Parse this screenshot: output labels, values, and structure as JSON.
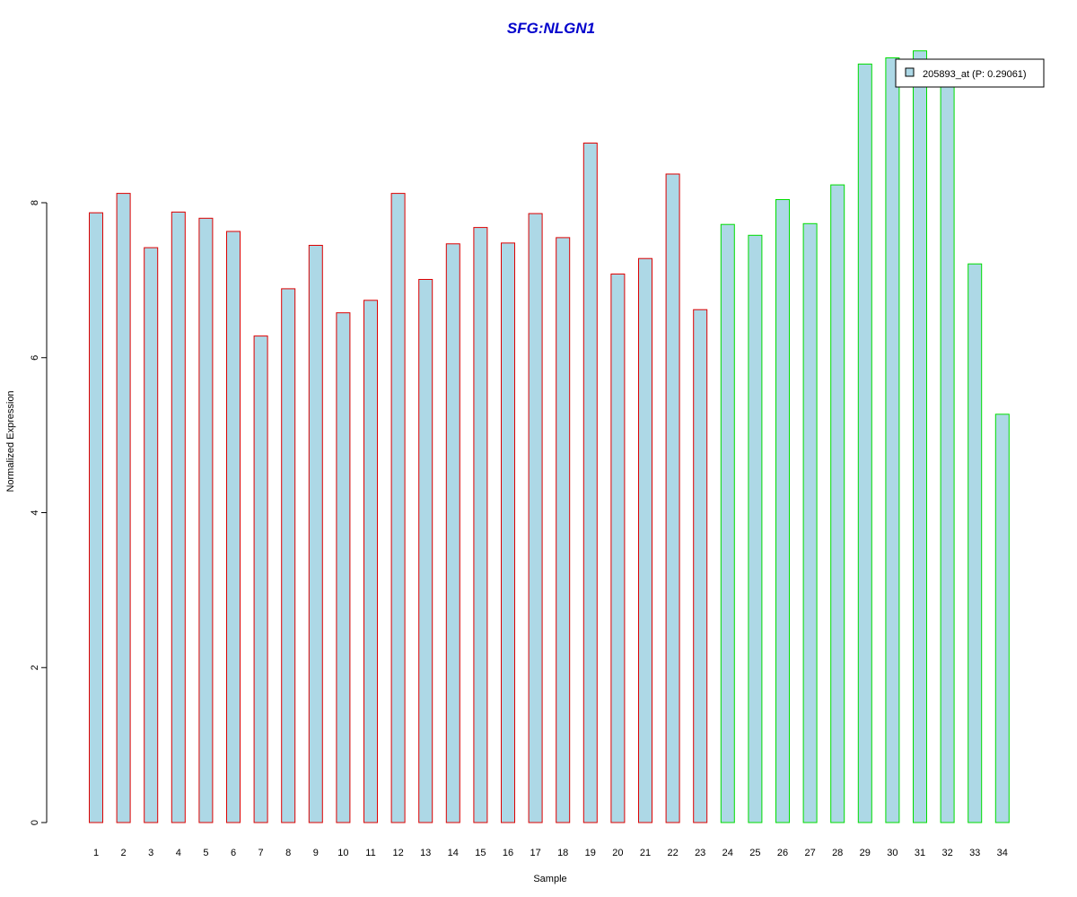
{
  "chart_data": {
    "type": "bar",
    "title": "SFG:NLGN1",
    "xlabel": "Sample",
    "ylabel": "Normalized Expression",
    "ylim": [
      0,
      10
    ],
    "yticks": [
      "0",
      "2",
      "4",
      "6",
      "8"
    ],
    "categories": [
      "1",
      "2",
      "3",
      "4",
      "5",
      "6",
      "7",
      "8",
      "9",
      "10",
      "11",
      "12",
      "13",
      "14",
      "15",
      "16",
      "17",
      "18",
      "19",
      "20",
      "21",
      "22",
      "23",
      "24",
      "25",
      "26",
      "27",
      "28",
      "29",
      "30",
      "31",
      "32",
      "33",
      "34"
    ],
    "values": [
      7.87,
      8.12,
      7.42,
      7.88,
      7.8,
      7.63,
      6.28,
      6.89,
      7.45,
      6.58,
      6.74,
      8.12,
      7.01,
      7.47,
      7.68,
      7.48,
      7.86,
      7.55,
      8.77,
      7.08,
      7.28,
      8.37,
      6.62,
      7.72,
      7.58,
      8.04,
      7.73,
      8.23,
      9.79,
      9.87,
      9.96,
      9.6,
      7.21,
      5.27
    ],
    "groups": [
      "red",
      "red",
      "red",
      "red",
      "red",
      "red",
      "red",
      "red",
      "red",
      "red",
      "red",
      "red",
      "red",
      "red",
      "red",
      "red",
      "red",
      "red",
      "red",
      "red",
      "red",
      "red",
      "red",
      "green",
      "green",
      "green",
      "green",
      "green",
      "green",
      "green",
      "green",
      "green",
      "green",
      "green"
    ],
    "colors": {
      "fill": "#add8e6",
      "red": "#dd0000",
      "green": "#00dd00",
      "title": "#0000cc"
    },
    "legend": {
      "label": "205893_at (P: 0.29061)",
      "position": "top-right"
    },
    "grid": false
  }
}
